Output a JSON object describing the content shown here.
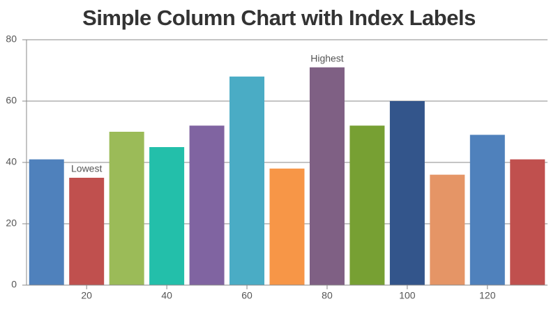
{
  "chart_data": {
    "type": "bar",
    "title": "Simple Column Chart with Index Labels",
    "x": [
      10,
      20,
      30,
      40,
      50,
      60,
      70,
      80,
      90,
      100,
      110,
      120,
      130
    ],
    "values": [
      41,
      35,
      50,
      45,
      52,
      68,
      38,
      71,
      52,
      60,
      36,
      49,
      41
    ],
    "colors": [
      "#4F81BC",
      "#C0504E",
      "#9BBB58",
      "#23BFAA",
      "#8064A1",
      "#4AACC5",
      "#F79647",
      "#7F6084",
      "#77A033",
      "#33558B",
      "#E59566",
      "#4F81BC",
      "#C0504E"
    ],
    "index_labels": [
      null,
      "Lowest",
      null,
      null,
      null,
      null,
      null,
      "Highest",
      null,
      null,
      null,
      null,
      null
    ],
    "xlim": [
      5,
      135
    ],
    "xticks": [
      20,
      40,
      60,
      80,
      100,
      120
    ],
    "ylim": [
      0,
      80
    ],
    "yticks": [
      0,
      20,
      40,
      60,
      80
    ],
    "grid": true
  }
}
